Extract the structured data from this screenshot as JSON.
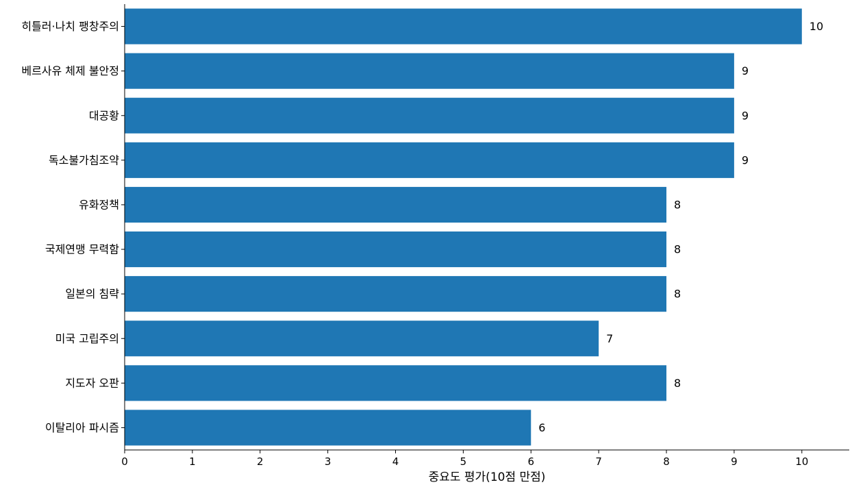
{
  "chart_data": {
    "type": "bar",
    "orientation": "horizontal",
    "categories": [
      "히틀러·나치 팽창주의",
      "베르사유 체제 불안정",
      "대공황",
      "독소불가침조약",
      "유화정책",
      "국제연맹 무력함",
      "일본의 침략",
      "미국 고립주의",
      "지도자 오판",
      "이탈리아 파시즘"
    ],
    "values": [
      10,
      9,
      9,
      9,
      8,
      8,
      8,
      7,
      8,
      6
    ],
    "value_labels": [
      "10",
      "9",
      "9",
      "9",
      "8",
      "8",
      "8",
      "7",
      "8",
      "6"
    ],
    "title": "",
    "xlabel": "중요도 평가(10점 만점)",
    "ylabel": "",
    "xlim": [
      0,
      10.7
    ],
    "xticks": [
      0,
      1,
      2,
      3,
      4,
      5,
      6,
      7,
      8,
      9,
      10
    ],
    "xtick_labels": [
      "0",
      "1",
      "2",
      "3",
      "4",
      "5",
      "6",
      "7",
      "8",
      "9",
      "10"
    ],
    "grid": false,
    "legend": "none",
    "bar_color": "#1f77b4",
    "axis_color": "#000000"
  }
}
